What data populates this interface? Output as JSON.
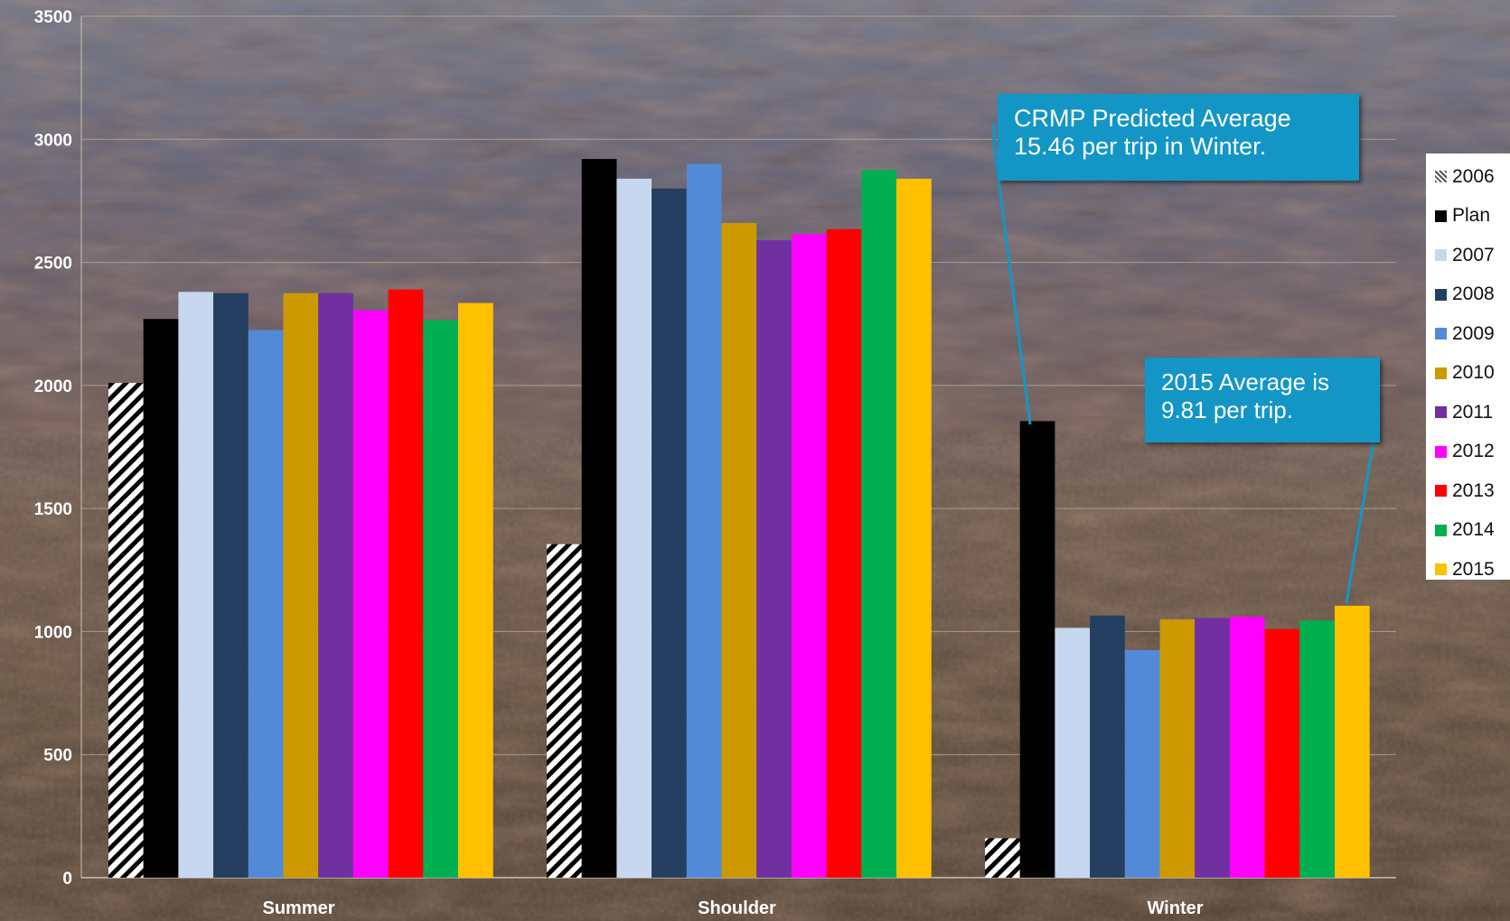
{
  "chart_data": {
    "type": "bar",
    "categories": [
      "Summer",
      "Shoulder",
      "Winter"
    ],
    "ylim": [
      0,
      3500
    ],
    "yticks": [
      0,
      500,
      1000,
      1500,
      2000,
      2500,
      3000,
      3500
    ],
    "grid": true,
    "legend": "right",
    "series": [
      {
        "name": "2006",
        "color": "#ffffff",
        "pattern": "hatch",
        "values": [
          2010,
          1355,
          160
        ]
      },
      {
        "name": "Plan",
        "color": "#000000",
        "values": [
          2270,
          2920,
          1855
        ]
      },
      {
        "name": "2007",
        "color": "#c6d7ef",
        "values": [
          2380,
          2840,
          1015
        ]
      },
      {
        "name": "2008",
        "color": "#243f5f",
        "values": [
          2375,
          2800,
          1065
        ]
      },
      {
        "name": "2009",
        "color": "#538ad8",
        "values": [
          2225,
          2900,
          925
        ]
      },
      {
        "name": "2010",
        "color": "#cc9900",
        "values": [
          2375,
          2660,
          1050
        ]
      },
      {
        "name": "2011",
        "color": "#7030a0",
        "values": [
          2375,
          2590,
          1055
        ]
      },
      {
        "name": "2012",
        "color": "#ff00ff",
        "values": [
          2305,
          2615,
          1060
        ]
      },
      {
        "name": "2013",
        "color": "#ff0000",
        "values": [
          2390,
          2635,
          1010
        ]
      },
      {
        "name": "2014",
        "color": "#00b050",
        "values": [
          2265,
          2875,
          1045
        ]
      },
      {
        "name": "2015",
        "color": "#ffc000",
        "values": [
          2335,
          2840,
          1105
        ]
      }
    ],
    "annotations": [
      {
        "text": "CRMP Predicted Average 15.46 per trip in Winter.",
        "category": "Winter",
        "series": "Plan"
      },
      {
        "text": "2015 Average is 9.81 per trip.",
        "category": "Winter",
        "series": "2015"
      }
    ]
  }
}
